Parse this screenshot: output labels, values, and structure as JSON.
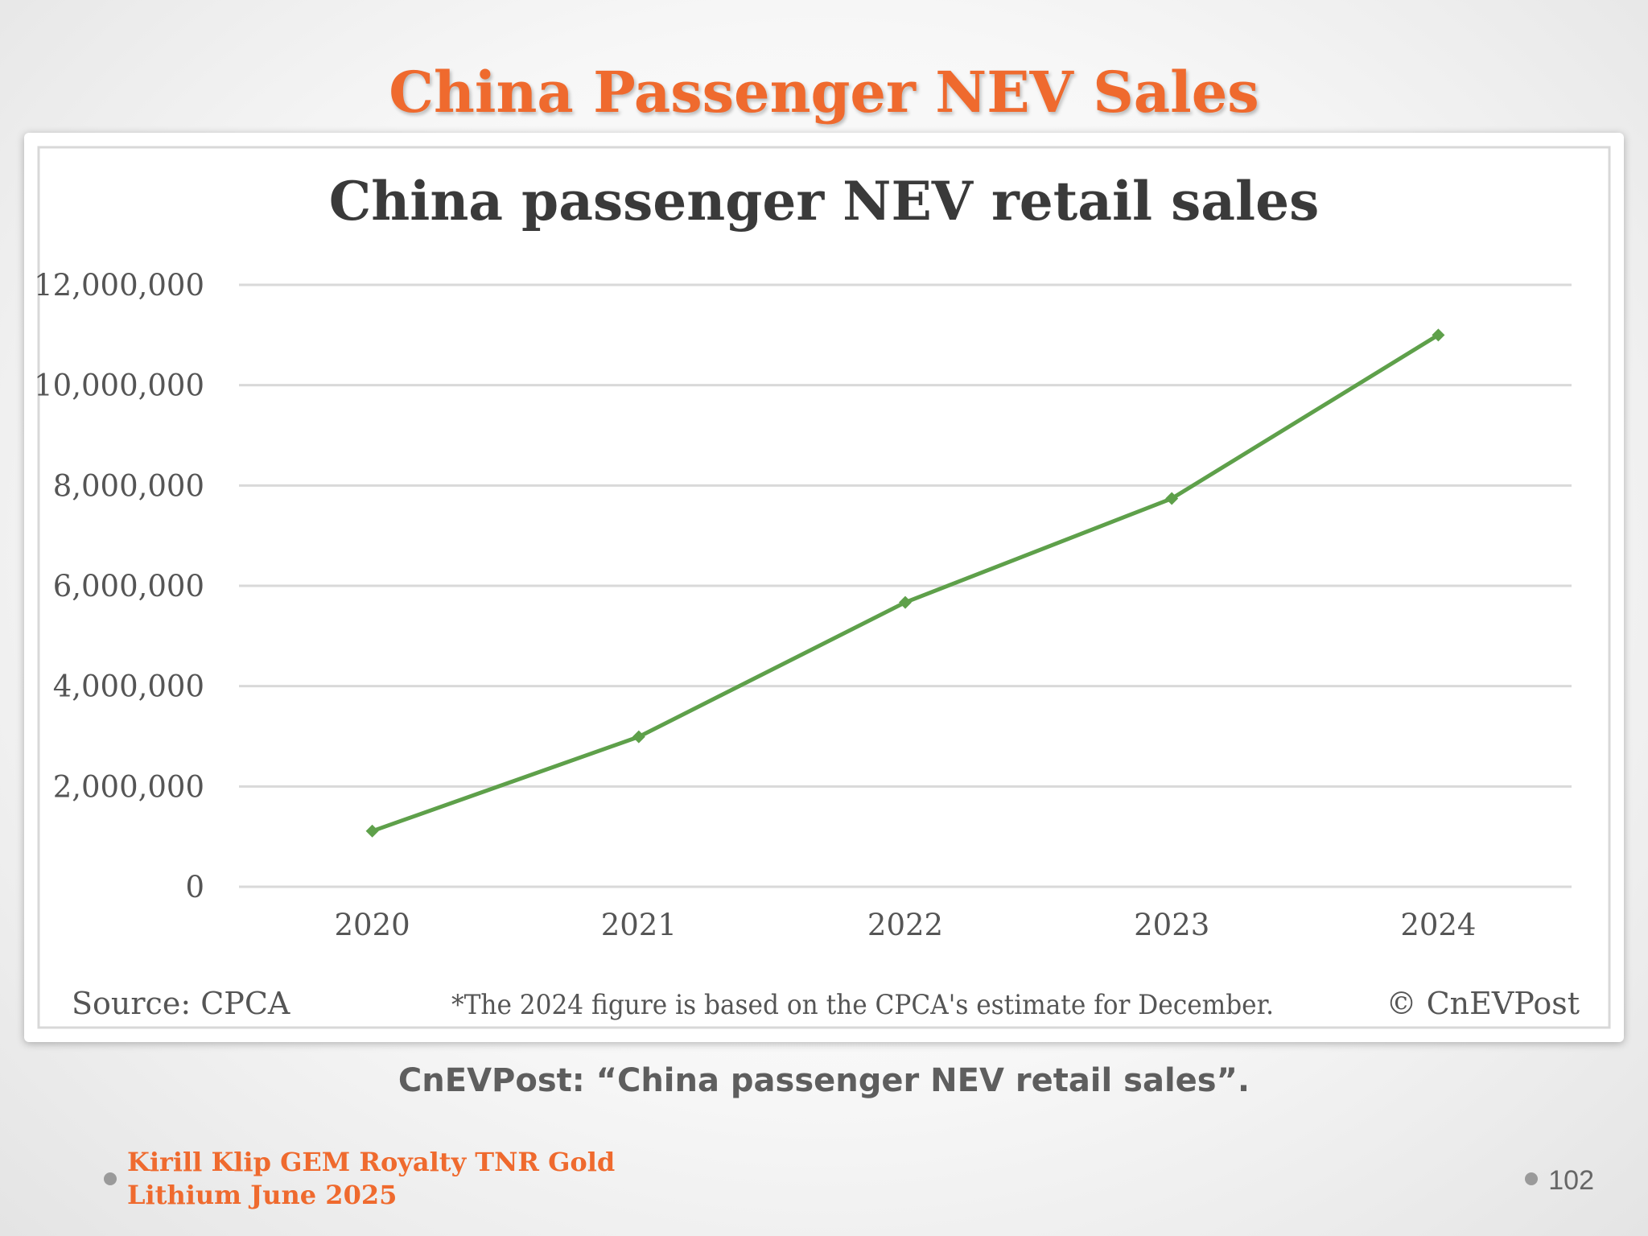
{
  "slide": {
    "title": "China Passenger NEV Sales",
    "caption": "CnEVPost: “China passenger NEV retail sales”.",
    "footer_line1": "Kirill Klip GEM Royalty TNR Gold",
    "footer_line2": "Lithium June 2025",
    "page_number": "102"
  },
  "chart_data": {
    "type": "line",
    "title": "China passenger NEV retail sales",
    "xlabel": "",
    "ylabel": "",
    "categories": [
      "2020",
      "2021",
      "2022",
      "2023",
      "2024"
    ],
    "series": [
      {
        "values": [
          1110000,
          2990000,
          5670000,
          7740000,
          11000000
        ],
        "color": "#5ea04a",
        "marker": "diamond"
      }
    ],
    "ylim": [
      0,
      12000000
    ],
    "y_ticks": [
      0,
      2000000,
      4000000,
      6000000,
      8000000,
      10000000,
      12000000
    ],
    "y_tick_labels": [
      "0",
      "2,000,000",
      "4,000,000",
      "6,000,000",
      "8,000,000",
      "10,000,000",
      "12,000,000"
    ],
    "grid": true,
    "legend": "none",
    "source_note": "Source: CPCA",
    "footnote": "*The 2024 figure is based on the CPCA's estimate for December.",
    "copyright": "© CnEVPost"
  }
}
